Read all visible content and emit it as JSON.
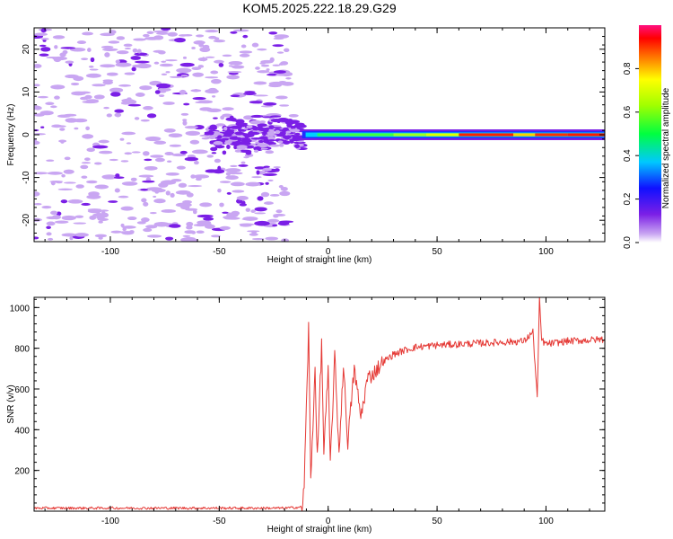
{
  "title": "KOM5.2025.222.18.29.G29",
  "colors": {
    "line": "#e53935",
    "spec_dark": "#7b1fe6",
    "spec_light": "#c9a6f2",
    "axis": "#000000"
  },
  "chart_data": [
    {
      "type": "heatmap",
      "title": "KOM5.2025.222.18.29.G29",
      "xlabel": "Height of straight line (km)",
      "ylabel": "Frequency (Hz)",
      "xlim": [
        -135,
        127
      ],
      "ylim": [
        -25,
        25
      ],
      "xticks": [
        -100,
        -50,
        0,
        50,
        100
      ],
      "yticks": [
        -20,
        -10,
        0,
        10,
        20
      ],
      "colorbar": {
        "label": "Normalized spectral amplitude",
        "range": [
          0,
          1
        ],
        "ticks": [
          0.0,
          0.2,
          0.4,
          0.6,
          0.8
        ]
      },
      "description_values": {
        "noise_region_km": [
          -135,
          -18
        ],
        "transition_region_km": [
          -55,
          -12
        ],
        "signal_line_km": [
          -12,
          127
        ],
        "signal_frequency_hz": 0
      }
    },
    {
      "type": "line",
      "xlabel": "Height of straight line (km)",
      "ylabel": "SNR (v/v)",
      "xlim": [
        -135,
        127
      ],
      "ylim": [
        0,
        1050
      ],
      "xticks": [
        -100,
        -50,
        0,
        50,
        100
      ],
      "yticks": [
        200,
        400,
        600,
        800,
        1000
      ],
      "series": [
        {
          "name": "SNR",
          "x": [
            -135,
            -100,
            -60,
            -20,
            -12,
            -11,
            -9,
            -8,
            -6,
            -5,
            -3,
            -2,
            0,
            1,
            3,
            5,
            7,
            9,
            12,
            15,
            18,
            21,
            25,
            30,
            35,
            40,
            50,
            60,
            70,
            80,
            90,
            94,
            96,
            97,
            98,
            100,
            110,
            120,
            127
          ],
          "y": [
            15,
            15,
            15,
            15,
            20,
            120,
            900,
            150,
            700,
            250,
            820,
            300,
            680,
            230,
            760,
            290,
            720,
            340,
            700,
            460,
            650,
            680,
            730,
            770,
            790,
            805,
            815,
            820,
            825,
            830,
            835,
            880,
            560,
            1040,
            840,
            820,
            835,
            840,
            845
          ]
        }
      ]
    }
  ]
}
